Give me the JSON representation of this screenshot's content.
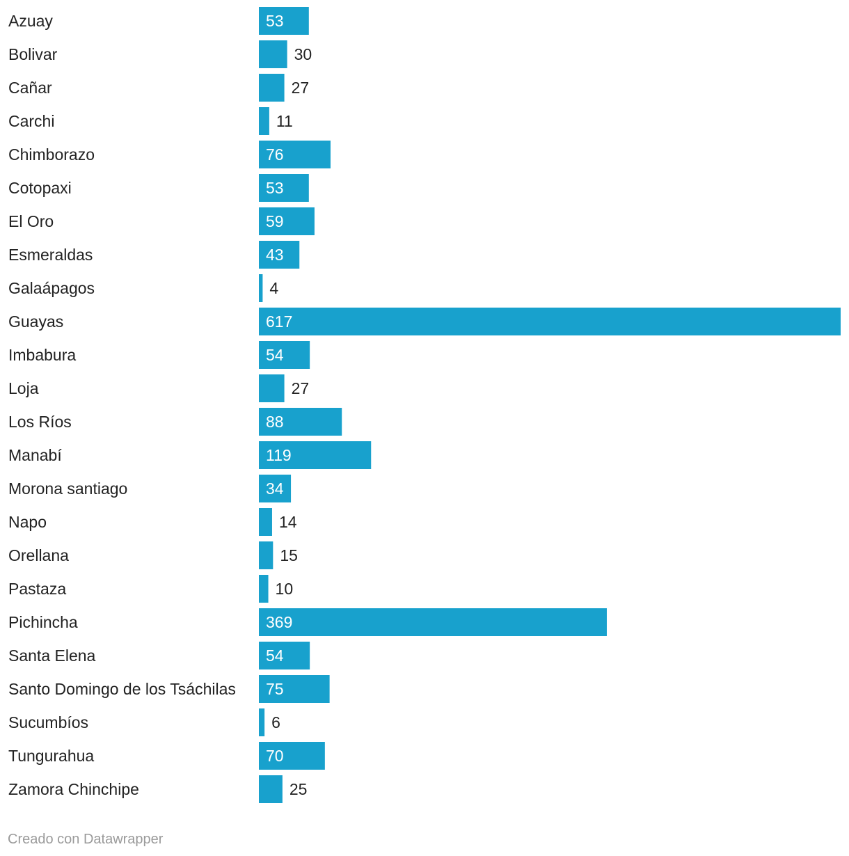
{
  "chart_data": {
    "type": "bar",
    "orientation": "horizontal",
    "categories": [
      "Azuay",
      "Bolivar",
      "Cañar",
      "Carchi",
      "Chimborazo",
      "Cotopaxi",
      "El Oro",
      "Esmeraldas",
      "Galaápagos",
      "Guayas",
      "Imbabura",
      "Loja",
      "Los Ríos",
      "Manabí",
      "Morona santiago",
      "Napo",
      "Orellana",
      "Pastaza",
      "Pichincha",
      "Santa Elena",
      "Santo Domingo de los Tsáchilas",
      "Sucumbíos",
      "Tungurahua",
      "Zamora Chinchipe"
    ],
    "values": [
      53,
      30,
      27,
      11,
      76,
      53,
      59,
      43,
      4,
      617,
      54,
      27,
      88,
      119,
      34,
      14,
      15,
      10,
      369,
      54,
      75,
      6,
      70,
      25
    ],
    "xlim": [
      0,
      617
    ],
    "grid": false,
    "legend": "none",
    "colors": {
      "bar": "#18a1cd",
      "label_inside": "#ffffff",
      "label_outside": "#222222",
      "category_text": "#222222",
      "footer_text": "#9a9a9a"
    }
  },
  "footer": {
    "credit": "Creado con Datawrapper"
  }
}
